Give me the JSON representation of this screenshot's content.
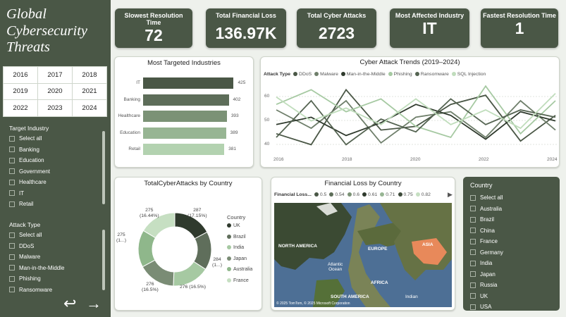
{
  "sidebar": {
    "title": "Global Cybersecurity Threats",
    "years": [
      "2016",
      "2017",
      "2018",
      "2019",
      "2020",
      "2021",
      "2022",
      "2023",
      "2024"
    ],
    "industry_title": "Target Industry",
    "industry_options": [
      "Select all",
      "Banking",
      "Education",
      "Government",
      "Healthcare",
      "IT",
      "Retail"
    ],
    "attack_title": "Attack Type",
    "attack_options": [
      "Select all",
      "DDoS",
      "Malware",
      "Man-in-the-Middle",
      "Phishing",
      "Ransomware"
    ],
    "back": "↩",
    "forward": "→"
  },
  "kpis": [
    {
      "label": "Slowest Resolution Time",
      "value": "72"
    },
    {
      "label": "Total Financial Loss",
      "value": "136.97K"
    },
    {
      "label": "Total Cyber Attacks",
      "value": "2723"
    },
    {
      "label": "Most Affected Industry",
      "value": "IT"
    },
    {
      "label": "Fastest Resolution Time",
      "value": "1"
    }
  ],
  "industries_chart": {
    "title": "Most Targeted Industries",
    "type": "bar",
    "categories": [
      "IT",
      "Banking",
      "Healthcare",
      "Education",
      "Retail"
    ],
    "values": [
      425,
      402,
      393,
      389,
      381
    ],
    "colors": [
      "#4a5746",
      "#5d6d59",
      "#7b9276",
      "#97b593",
      "#b3d2b0"
    ]
  },
  "trend_chart": {
    "title": "Cyber Attack Trends (2019–2024)",
    "legend_title": "Attack Type",
    "legend": [
      "DDoS",
      "Malware",
      "Man-in-the-Middle",
      "Phishing",
      "Ransomware",
      "SQL Injection"
    ],
    "colors": [
      "#4a5746",
      "#6f7f6b",
      "#2f3a2d",
      "#a6c9a2",
      "#556452",
      "#c0ddbc"
    ],
    "x_ticks": [
      "2016",
      "2018",
      "2020",
      "2022",
      "2024"
    ],
    "y_ticks": [
      "60",
      "50",
      "40"
    ]
  },
  "country_donut": {
    "title": "TotalCyberAttacks by Country",
    "legend_title": "Country",
    "legend": [
      "UK",
      "Brazil",
      "India",
      "Japan",
      "Australia",
      "France"
    ],
    "colors": [
      "#2f3a2d",
      "#5f6e5b",
      "#a6c9a2",
      "#7a8c75",
      "#8fb78b",
      "#c6dfc2"
    ],
    "labels": [
      "287\n(17.15%)",
      "284\n(1...)",
      "276 (16.5%)",
      "276\n(16.5%)",
      "275\n(1...)",
      "275\n(16.44%)"
    ]
  },
  "map": {
    "title": "Financial Loss by Country",
    "legend_title": "Financial Loss...",
    "legend": [
      "0.5",
      "0.54",
      "0.6",
      "0.61",
      "0.71",
      "0.75",
      "0.82"
    ],
    "legend_colors": [
      "#4a5746",
      "#5d6d59",
      "#7b9276",
      "#2f3a2d",
      "#97b593",
      "#3d4a3a",
      "#c6dfc2"
    ],
    "labels": {
      "na": "NORTH AMERICA",
      "eu": "EUROPE",
      "asia": "ASIA",
      "ocean": "Atlantic\nOcean",
      "africa": "AFRICA",
      "sa": "SOUTH AMERICA",
      "indian": "Indian"
    },
    "credit": "© 2025 TomTom, © 2025 Microsoft Corporation"
  },
  "country_slicer": {
    "title": "Country",
    "options": [
      "Select all",
      "Australia",
      "Brazil",
      "China",
      "France",
      "Germany",
      "India",
      "Japan",
      "Russia",
      "UK",
      "USA"
    ]
  }
}
